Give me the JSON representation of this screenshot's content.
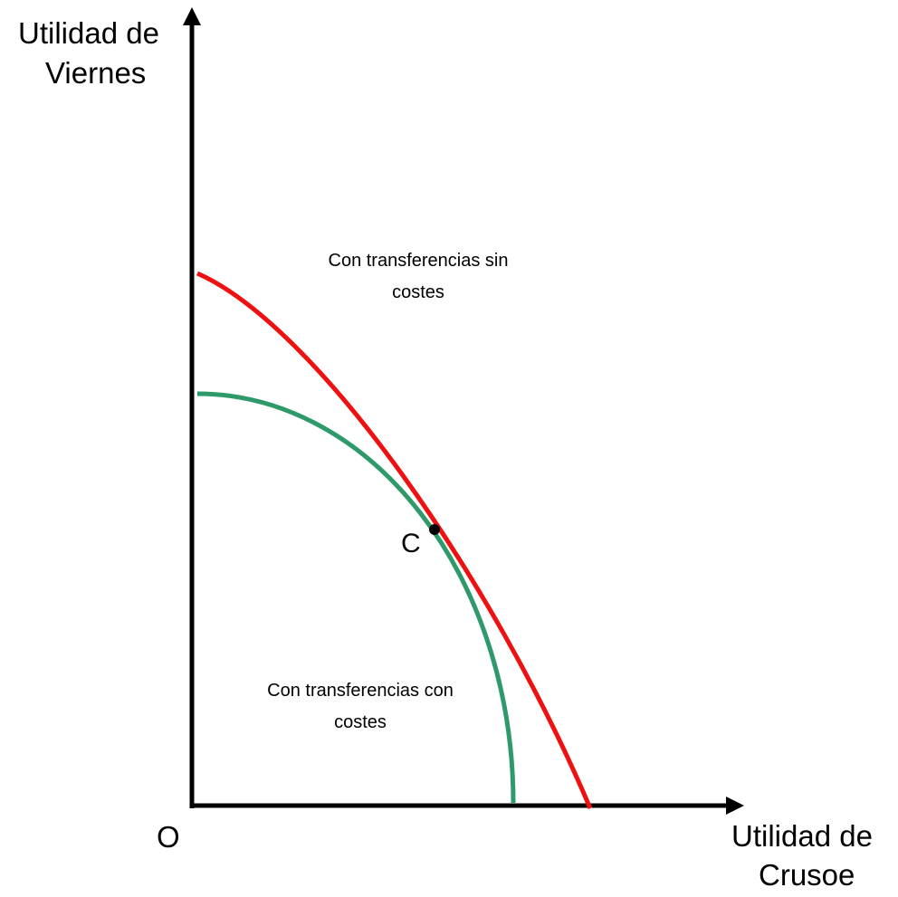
{
  "y_axis_label": [
    "Utilidad de",
    "Viernes"
  ],
  "x_axis_label": [
    "Utilidad de",
    "Crusoe"
  ],
  "origin_label": "O",
  "point_label": "C",
  "curves": [
    {
      "label": [
        "Con transferencias sin",
        "costes"
      ]
    },
    {
      "label": [
        "Con transferencias con",
        "costes"
      ]
    }
  ]
}
